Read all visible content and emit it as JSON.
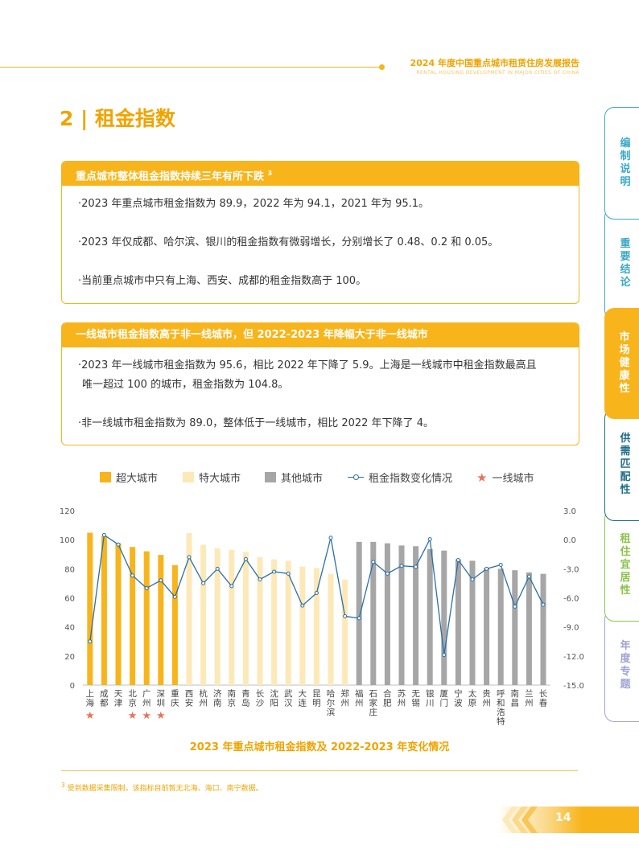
{
  "header": {
    "title": "2024 年度中国重点城市租赁住房发展报告",
    "subtitle": "RENTAL HOUSING DEVELOPMENT IN MAJOR CITIES OF CHINA"
  },
  "section_title": "2 | 租金指数",
  "box1": {
    "heading": "重点城市整体租金指数持续三年有所下跌",
    "heading_note": "3",
    "bullets": [
      "·2023 年重点城市租金指数为 89.9，2022 年为 94.1，2021 年为 95.1。",
      "·2023 年仅成都、哈尔滨、银川的租金指数有微弱增长，分别增长了 0.48、0.2 和 0.05。",
      "·当前重点城市中只有上海、西安、成都的租金指数高于 100。"
    ]
  },
  "box2": {
    "heading": "一线城市租金指数高于非一线城市，但 2022-2023 年降幅大于非一线城市",
    "bullets": [
      "·2023 年一线城市租金指数为 95.6，相比 2022 年下降了 5.9。上海是一线城市中租金指数最高且",
      "唯一超过 100 的城市，租金指数为 104.8。",
      "·非一线城市租金指数为 89.0，整体低于一线城市，相比 2022 年下降了 4。"
    ]
  },
  "legend": {
    "super": "超大城市",
    "mega": "特大城市",
    "other": "其他城市",
    "line": "租金指数变化情况",
    "tier1": "一线城市"
  },
  "colors": {
    "super": "#f8b41b",
    "mega": "#fde9b8",
    "other": "#a6a6a6",
    "line": "#2a6fa8",
    "star": "#e8735a",
    "accent": "#f0a400"
  },
  "chart_data": {
    "type": "bar",
    "title": "2023 年重点城市租金指数及 2022-2023 年变化情况",
    "categories": [
      "上海",
      "成都",
      "天津",
      "北京",
      "广州",
      "深圳",
      "重庆",
      "西安",
      "杭州",
      "济南",
      "南京",
      "青岛",
      "长沙",
      "沈阳",
      "武汉",
      "大连",
      "昆明",
      "哈尔滨",
      "郑州",
      "福州",
      "石家庄",
      "合肥",
      "苏州",
      "无锡",
      "银川",
      "厦门",
      "宁波",
      "太原",
      "贵州",
      "呼和浩特",
      "南昌",
      "兰州",
      "长春"
    ],
    "group": [
      "super",
      "super",
      "super",
      "super",
      "super",
      "super",
      "super",
      "mega",
      "mega",
      "mega",
      "mega",
      "mega",
      "mega",
      "mega",
      "mega",
      "mega",
      "mega",
      "mega",
      "mega",
      "other",
      "other",
      "other",
      "other",
      "other",
      "other",
      "other",
      "other",
      "other",
      "other",
      "other",
      "other",
      "other",
      "other"
    ],
    "series": [
      {
        "name": "租金指数",
        "axis": "left",
        "values": [
          104.8,
          102.5,
          97.5,
          95.0,
          92.0,
          89.5,
          82.5,
          104.5,
          96.5,
          94.0,
          93.0,
          91.5,
          88.0,
          86.5,
          85.5,
          81.5,
          80.5,
          76.5,
          72.5,
          98.5,
          98.5,
          97.5,
          96.0,
          95.5,
          93.5,
          92.5,
          86.5,
          85.5,
          80.5,
          80.0,
          79.0,
          77.5,
          76.5
        ]
      },
      {
        "name": "租金指数变化情况",
        "axis": "right",
        "values": [
          -10.5,
          0.48,
          -0.5,
          -3.7,
          -5.0,
          -4.2,
          -5.9,
          -1.8,
          -4.5,
          -3.0,
          -4.8,
          -2.0,
          -4.1,
          -3.3,
          -3.5,
          -6.8,
          -5.5,
          0.2,
          -7.9,
          -8.1,
          -2.3,
          -3.5,
          -2.7,
          -2.8,
          0.05,
          -11.9,
          -2.1,
          -4.1,
          -3.0,
          -2.6,
          -6.9,
          -3.8,
          -6.7
        ]
      }
    ],
    "tier1": [
      "上海",
      "北京",
      "广州",
      "深圳"
    ],
    "ylim_left": [
      0,
      120
    ],
    "yticks_left": [
      "0",
      "20",
      "40",
      "60",
      "80",
      "100",
      "120"
    ],
    "ylim_right": [
      -15,
      3
    ],
    "yticks_right": [
      "-15.0",
      "-12.0",
      "-9.0",
      "-6.0",
      "-3.0",
      "0.0",
      "3.0"
    ],
    "legend_position": "top",
    "grid": false
  },
  "footnote": {
    "mark": "3",
    "text": " 受到数据采集限制，该指标目前暂无北海、海口、南宁数据。"
  },
  "page_number": "14",
  "side_tabs": [
    {
      "label": "编制说明",
      "color": "#3aa7c9",
      "active": false
    },
    {
      "label": "重要结论",
      "color": "#3aa7c9",
      "active": false
    },
    {
      "label": "市场健康性",
      "color": "#f8b41b",
      "active": true
    },
    {
      "label": "供需匹配性",
      "color": "#1f6d8a",
      "active": false
    },
    {
      "label": "租住宜居性",
      "color": "#8cc24a",
      "active": false
    },
    {
      "label": "年度专题",
      "color": "#9fa3d4",
      "active": false
    }
  ]
}
